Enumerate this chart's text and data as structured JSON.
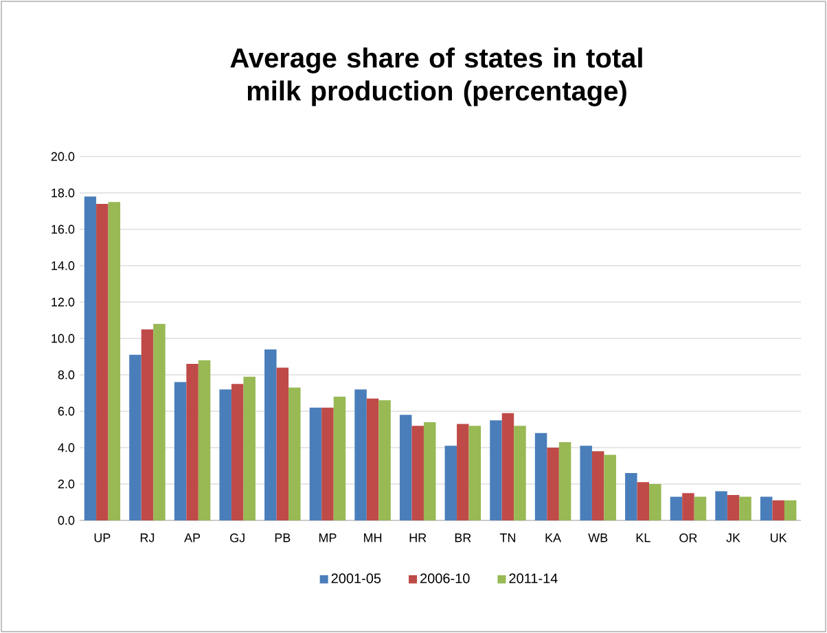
{
  "chart_data": {
    "type": "bar",
    "title": "Average share of states in total milk production (percentage)",
    "categories": [
      "UP",
      "RJ",
      "AP",
      "GJ",
      "PB",
      "MP",
      "MH",
      "HR",
      "BR",
      "TN",
      "KA",
      "WB",
      "KL",
      "OR",
      "JK",
      "UK"
    ],
    "series": [
      {
        "name": "2001-05",
        "color": "#4a7ebb",
        "values": [
          17.8,
          9.1,
          7.6,
          7.2,
          9.4,
          6.2,
          7.2,
          5.8,
          4.1,
          5.5,
          4.8,
          4.1,
          2.6,
          1.3,
          1.6,
          1.3
        ]
      },
      {
        "name": "2006-10",
        "color": "#be4b48",
        "values": [
          17.4,
          10.5,
          8.6,
          7.5,
          8.4,
          6.2,
          6.7,
          5.2,
          5.3,
          5.9,
          4.0,
          3.8,
          2.1,
          1.5,
          1.4,
          1.1
        ]
      },
      {
        "name": "2011-14",
        "color": "#98b954",
        "values": [
          17.5,
          10.8,
          8.8,
          7.9,
          7.3,
          6.8,
          6.6,
          5.4,
          5.2,
          5.2,
          4.3,
          3.6,
          2.0,
          1.3,
          1.3,
          1.1
        ]
      }
    ],
    "ylim": [
      0,
      20
    ],
    "yticks": [
      {
        "value": 0,
        "label": "0.0"
      },
      {
        "value": 2,
        "label": "2.0"
      },
      {
        "value": 4,
        "label": "4.0"
      },
      {
        "value": 6,
        "label": "6.0"
      },
      {
        "value": 8,
        "label": "8.0"
      },
      {
        "value": 10,
        "label": "10.0"
      },
      {
        "value": 12,
        "label": "12.0"
      },
      {
        "value": 14,
        "label": "14.0"
      },
      {
        "value": 16,
        "label": "16.0"
      },
      {
        "value": 18,
        "label": "18.0"
      },
      {
        "value": 20,
        "label": "20.0"
      }
    ],
    "grid": "y",
    "legend": "bottom"
  }
}
